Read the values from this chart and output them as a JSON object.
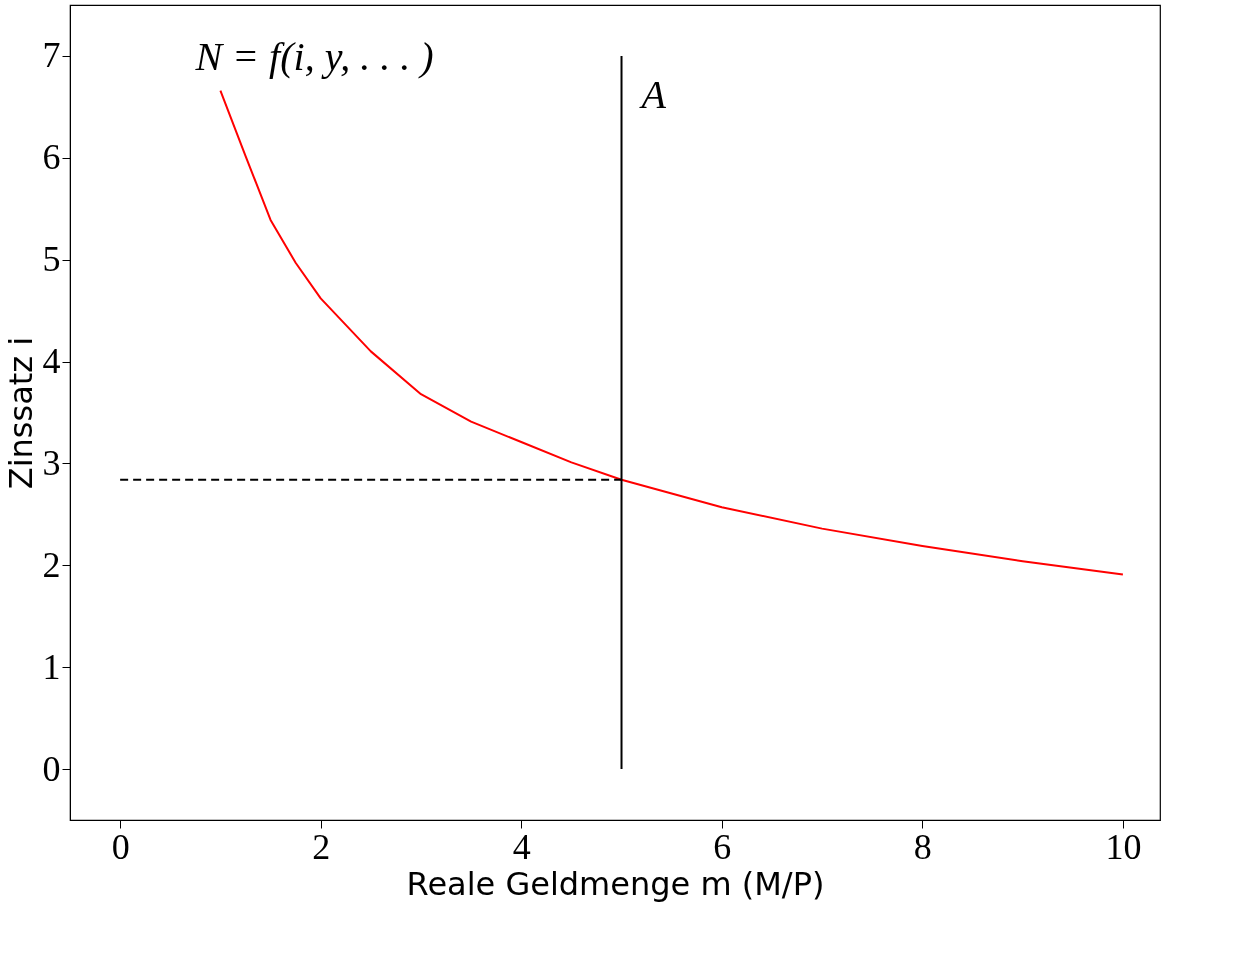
{
  "chart_data": {
    "type": "line",
    "xlabel": "Reale Geldmenge m (M/P)",
    "ylabel": "Zinssatz i",
    "xlim": [
      -0.5,
      10.37
    ],
    "ylim": [
      -0.5,
      7.5
    ],
    "xticks": [
      0,
      2,
      4,
      6,
      8,
      10
    ],
    "yticks": [
      0,
      1,
      2,
      3,
      4,
      5,
      6,
      7
    ],
    "grid": false,
    "series": [
      {
        "name": "N = f(i, y, . . . )",
        "color": "#ff0000",
        "x": [
          1,
          1.25,
          1.5,
          1.75,
          2,
          2.5,
          3,
          3.5,
          4,
          4.5,
          5,
          6,
          7,
          8,
          9,
          10
        ],
        "values": [
          6.66,
          6.02,
          5.39,
          4.97,
          4.62,
          4.1,
          3.68,
          3.41,
          3.21,
          3.01,
          2.84,
          2.57,
          2.36,
          2.19,
          2.04,
          1.91
        ]
      },
      {
        "name": "A",
        "color": "#000000",
        "x": [
          5,
          5
        ],
        "values": [
          0,
          7
        ]
      },
      {
        "color": "#000000",
        "line_style": "dashed",
        "x": [
          0,
          5
        ],
        "values": [
          2.84,
          2.84
        ]
      }
    ]
  }
}
